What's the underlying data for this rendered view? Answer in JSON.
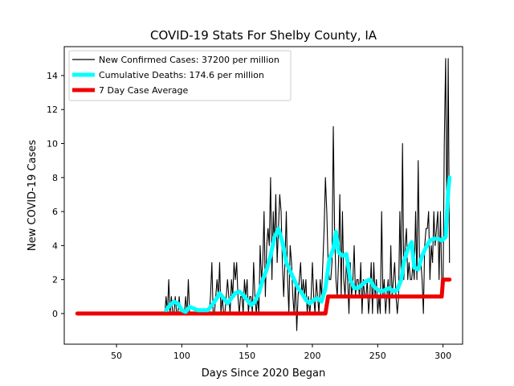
{
  "chart_data": {
    "type": "line",
    "title": "COVID-19 Stats For Shelby County, IA",
    "xlabel": "Days Since 2020 Began",
    "ylabel": "New COVID-19 Cases",
    "xlim": [
      10,
      315
    ],
    "ylim": [
      -1.8,
      15.7
    ],
    "xticks": [
      50,
      100,
      150,
      200,
      250,
      300
    ],
    "yticks": [
      0,
      2,
      4,
      6,
      8,
      10,
      12,
      14
    ],
    "grid": false,
    "legend_position": "top-left",
    "series": [
      {
        "name": "New Confirmed Cases: 37200 per million",
        "color": "#000000",
        "points": [
          [
            87,
            0
          ],
          [
            88,
            1
          ],
          [
            89,
            0
          ],
          [
            90,
            2
          ],
          [
            91,
            0
          ],
          [
            92,
            1
          ],
          [
            93,
            0
          ],
          [
            94,
            0
          ],
          [
            95,
            1
          ],
          [
            96,
            0
          ],
          [
            97,
            0
          ],
          [
            98,
            1
          ],
          [
            99,
            0
          ],
          [
            100,
            0
          ],
          [
            101,
            0
          ],
          [
            102,
            0
          ],
          [
            103,
            1
          ],
          [
            104,
            0
          ],
          [
            105,
            2
          ],
          [
            106,
            0
          ],
          [
            107,
            0
          ],
          [
            108,
            0
          ],
          [
            109,
            0
          ],
          [
            110,
            0
          ],
          [
            111,
            0
          ],
          [
            112,
            0
          ],
          [
            113,
            0
          ],
          [
            114,
            0
          ],
          [
            115,
            0
          ],
          [
            116,
            0
          ],
          [
            117,
            0
          ],
          [
            118,
            0
          ],
          [
            119,
            0
          ],
          [
            120,
            0
          ],
          [
            121,
            0
          ],
          [
            122,
            1
          ],
          [
            123,
            3
          ],
          [
            124,
            0
          ],
          [
            125,
            0
          ],
          [
            126,
            1
          ],
          [
            127,
            2
          ],
          [
            128,
            1
          ],
          [
            129,
            3
          ],
          [
            130,
            0
          ],
          [
            131,
            1
          ],
          [
            132,
            0
          ],
          [
            133,
            0
          ],
          [
            134,
            1
          ],
          [
            135,
            2
          ],
          [
            136,
            1
          ],
          [
            137,
            0
          ],
          [
            138,
            2
          ],
          [
            139,
            1
          ],
          [
            140,
            3
          ],
          [
            141,
            2
          ],
          [
            142,
            3
          ],
          [
            143,
            1
          ],
          [
            144,
            0
          ],
          [
            145,
            1
          ],
          [
            146,
            1
          ],
          [
            147,
            0
          ],
          [
            148,
            2
          ],
          [
            149,
            1
          ],
          [
            150,
            2
          ],
          [
            151,
            0
          ],
          [
            152,
            1
          ],
          [
            153,
            1
          ],
          [
            154,
            0
          ],
          [
            155,
            3
          ],
          [
            156,
            1
          ],
          [
            157,
            0
          ],
          [
            158,
            1
          ],
          [
            159,
            0
          ],
          [
            160,
            4
          ],
          [
            161,
            2
          ],
          [
            162,
            3
          ],
          [
            163,
            6
          ],
          [
            164,
            1
          ],
          [
            165,
            4
          ],
          [
            166,
            5
          ],
          [
            167,
            4
          ],
          [
            168,
            8
          ],
          [
            169,
            2
          ],
          [
            170,
            6
          ],
          [
            171,
            4
          ],
          [
            172,
            7
          ],
          [
            173,
            3
          ],
          [
            174,
            5
          ],
          [
            175,
            7
          ],
          [
            176,
            6
          ],
          [
            177,
            3
          ],
          [
            178,
            1
          ],
          [
            179,
            3
          ],
          [
            180,
            6
          ],
          [
            181,
            2
          ],
          [
            182,
            0
          ],
          [
            183,
            4
          ],
          [
            184,
            3
          ],
          [
            185,
            1
          ],
          [
            186,
            0
          ],
          [
            187,
            2
          ],
          [
            188,
            -1
          ],
          [
            189,
            1
          ],
          [
            190,
            2
          ],
          [
            191,
            3
          ],
          [
            192,
            1
          ],
          [
            193,
            2
          ],
          [
            194,
            1
          ],
          [
            195,
            2
          ],
          [
            196,
            0
          ],
          [
            197,
            1
          ],
          [
            198,
            0
          ],
          [
            199,
            1
          ],
          [
            200,
            3
          ],
          [
            201,
            1
          ],
          [
            202,
            0
          ],
          [
            203,
            2
          ],
          [
            204,
            1
          ],
          [
            205,
            0
          ],
          [
            206,
            2
          ],
          [
            207,
            1
          ],
          [
            208,
            3
          ],
          [
            209,
            5
          ],
          [
            210,
            8
          ],
          [
            211,
            6
          ],
          [
            212,
            3
          ],
          [
            213,
            2
          ],
          [
            214,
            2
          ],
          [
            215,
            3
          ],
          [
            216,
            11
          ],
          [
            217,
            5
          ],
          [
            218,
            2
          ],
          [
            219,
            1
          ],
          [
            220,
            3
          ],
          [
            221,
            7
          ],
          [
            222,
            1
          ],
          [
            223,
            6
          ],
          [
            224,
            2
          ],
          [
            225,
            1
          ],
          [
            226,
            3
          ],
          [
            227,
            2
          ],
          [
            228,
            0
          ],
          [
            229,
            3
          ],
          [
            230,
            1
          ],
          [
            231,
            2
          ],
          [
            232,
            4
          ],
          [
            233,
            1
          ],
          [
            234,
            2
          ],
          [
            235,
            2
          ],
          [
            236,
            1
          ],
          [
            237,
            3
          ],
          [
            238,
            0
          ],
          [
            239,
            2
          ],
          [
            240,
            1
          ],
          [
            241,
            1
          ],
          [
            242,
            2
          ],
          [
            243,
            0
          ],
          [
            244,
            1
          ],
          [
            245,
            3
          ],
          [
            246,
            0
          ],
          [
            247,
            3
          ],
          [
            248,
            1
          ],
          [
            249,
            2
          ],
          [
            250,
            0
          ],
          [
            251,
            1
          ],
          [
            252,
            0
          ],
          [
            253,
            6
          ],
          [
            254,
            1
          ],
          [
            255,
            2
          ],
          [
            256,
            0
          ],
          [
            257,
            1
          ],
          [
            258,
            2
          ],
          [
            259,
            0
          ],
          [
            260,
            4
          ],
          [
            261,
            1
          ],
          [
            262,
            2
          ],
          [
            263,
            3
          ],
          [
            264,
            1
          ],
          [
            265,
            0
          ],
          [
            266,
            1
          ],
          [
            267,
            6
          ],
          [
            268,
            2
          ],
          [
            269,
            10
          ],
          [
            270,
            2
          ],
          [
            271,
            4
          ],
          [
            272,
            5
          ],
          [
            273,
            2
          ],
          [
            274,
            3
          ],
          [
            275,
            2
          ],
          [
            276,
            2
          ],
          [
            277,
            3
          ],
          [
            278,
            2
          ],
          [
            279,
            6
          ],
          [
            280,
            2
          ],
          [
            281,
            9
          ],
          [
            282,
            3
          ],
          [
            283,
            3
          ],
          [
            284,
            2
          ],
          [
            285,
            0
          ],
          [
            286,
            4
          ],
          [
            287,
            5
          ],
          [
            288,
            5
          ],
          [
            289,
            6
          ],
          [
            290,
            2
          ],
          [
            291,
            4
          ],
          [
            292,
            3
          ],
          [
            293,
            6
          ],
          [
            294,
            4
          ],
          [
            295,
            5
          ],
          [
            296,
            6
          ],
          [
            297,
            2
          ],
          [
            298,
            6
          ],
          [
            299,
            2
          ],
          [
            300,
            1
          ],
          [
            301,
            10
          ],
          [
            302,
            15
          ],
          [
            303,
            5
          ],
          [
            304,
            15
          ],
          [
            305,
            3
          ]
        ]
      },
      {
        "name": "Cumulative Deaths: 174.6 per million",
        "color": "#00ffff",
        "points": [
          [
            88,
            0.2
          ],
          [
            91,
            0.5
          ],
          [
            94,
            0.7
          ],
          [
            97,
            0.6
          ],
          [
            100,
            0.2
          ],
          [
            103,
            0.1
          ],
          [
            106,
            0.4
          ],
          [
            109,
            0.3
          ],
          [
            112,
            0.2
          ],
          [
            120,
            0.2
          ],
          [
            123,
            0.5
          ],
          [
            126,
            0.8
          ],
          [
            129,
            1.2
          ],
          [
            132,
            0.9
          ],
          [
            135,
            0.6
          ],
          [
            138,
            0.9
          ],
          [
            141,
            1.2
          ],
          [
            144,
            1.3
          ],
          [
            147,
            1.1
          ],
          [
            150,
            0.8
          ],
          [
            153,
            0.5
          ],
          [
            156,
            0.7
          ],
          [
            159,
            1.2
          ],
          [
            162,
            2.0
          ],
          [
            165,
            2.6
          ],
          [
            168,
            3.4
          ],
          [
            171,
            4.5
          ],
          [
            174,
            5.0
          ],
          [
            177,
            4.2
          ],
          [
            180,
            3.0
          ],
          [
            183,
            2.5
          ],
          [
            186,
            2.0
          ],
          [
            189,
            1.5
          ],
          [
            192,
            1.2
          ],
          [
            195,
            0.8
          ],
          [
            198,
            0.6
          ],
          [
            201,
            0.8
          ],
          [
            204,
            0.9
          ],
          [
            207,
            0.7
          ],
          [
            210,
            1.5
          ],
          [
            213,
            3.2
          ],
          [
            216,
            3.8
          ],
          [
            218,
            4.8
          ],
          [
            220,
            3.6
          ],
          [
            223,
            3.4
          ],
          [
            226,
            3.5
          ],
          [
            229,
            2.0
          ],
          [
            232,
            1.5
          ],
          [
            235,
            1.5
          ],
          [
            238,
            1.7
          ],
          [
            241,
            1.9
          ],
          [
            244,
            2.0
          ],
          [
            247,
            1.6
          ],
          [
            250,
            1.4
          ],
          [
            253,
            1.3
          ],
          [
            256,
            1.4
          ],
          [
            259,
            1.5
          ],
          [
            262,
            1.3
          ],
          [
            265,
            1.4
          ],
          [
            268,
            2.0
          ],
          [
            270,
            3.0
          ],
          [
            273,
            3.8
          ],
          [
            276,
            4.2
          ],
          [
            278,
            2.7
          ],
          [
            281,
            2.6
          ],
          [
            284,
            3.4
          ],
          [
            287,
            3.9
          ],
          [
            290,
            4.3
          ],
          [
            293,
            4.4
          ],
          [
            296,
            4.4
          ],
          [
            299,
            4.3
          ],
          [
            302,
            4.5
          ],
          [
            304,
            7.2
          ],
          [
            305,
            8.0
          ]
        ]
      },
      {
        "name": "7 Day Case Average",
        "color": "#ee0000",
        "points": [
          [
            20,
            0
          ],
          [
            210,
            0
          ],
          [
            212,
            1
          ],
          [
            299,
            1
          ],
          [
            300,
            2
          ],
          [
            305,
            2
          ]
        ]
      }
    ]
  }
}
